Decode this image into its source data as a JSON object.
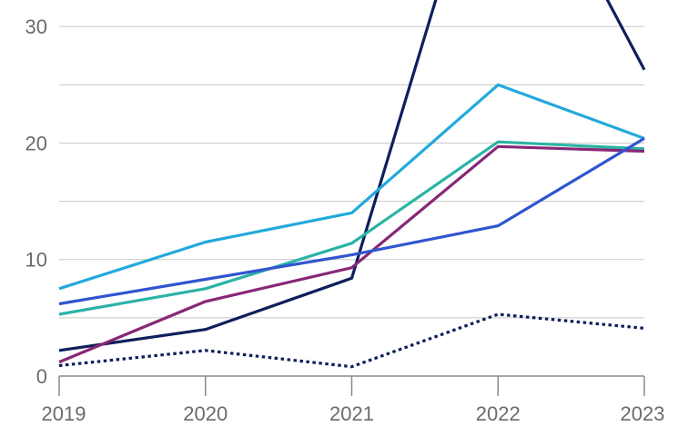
{
  "chart_data": {
    "type": "line",
    "title": "",
    "xlabel": "",
    "ylabel": "",
    "x": [
      "2019",
      "2020",
      "2021",
      "2022",
      "2023"
    ],
    "ylim": [
      0,
      31.5
    ],
    "yticks": [
      0,
      10,
      20,
      30
    ],
    "grid": true,
    "legend": "none",
    "series": [
      {
        "color": "#0e1f5b",
        "style": "solid",
        "values": [
          2.2,
          4.0,
          8.4,
          50,
          26.3
        ]
      },
      {
        "color": "#22a9dc",
        "style": "solid",
        "values": [
          7.5,
          11.5,
          14.0,
          25.0,
          20.4
        ]
      },
      {
        "color": "#2bb3a5",
        "style": "solid",
        "values": [
          5.3,
          7.5,
          11.4,
          20.1,
          19.5
        ]
      },
      {
        "color": "#872876",
        "style": "solid",
        "values": [
          1.2,
          6.4,
          9.3,
          19.7,
          19.3
        ]
      },
      {
        "color": "#3155d0",
        "style": "solid",
        "values": [
          6.2,
          8.3,
          10.4,
          12.9,
          20.4
        ]
      },
      {
        "color": "#0e1f5b",
        "style": "dotted",
        "values": [
          0.9,
          2.2,
          0.8,
          5.3,
          4.1
        ]
      }
    ]
  }
}
